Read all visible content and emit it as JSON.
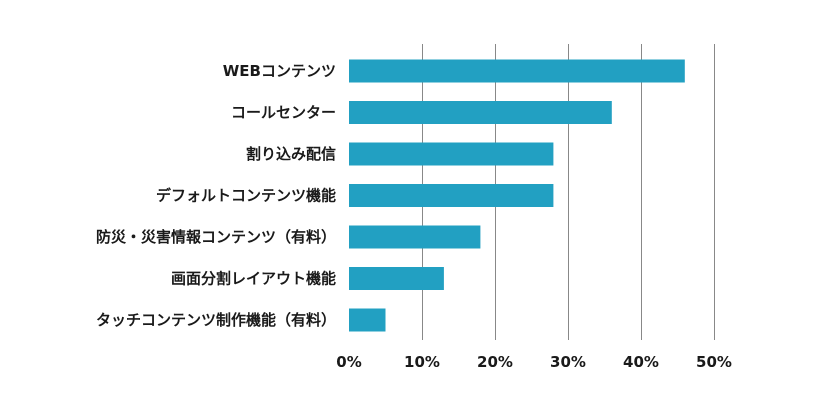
{
  "chart_data": {
    "type": "bar",
    "orientation": "horizontal",
    "categories": [
      "WEBコンテンツ",
      "コールセンター",
      "割り込み配信",
      "デフォルトコンテンツ機能",
      "防災・災害情報コンテンツ（有料）",
      "画面分割レイアウト機能",
      "タッチコンテンツ制作機能（有料）"
    ],
    "values": [
      46,
      36,
      28,
      28,
      18,
      13,
      5
    ],
    "xlim": [
      0,
      50
    ],
    "ticks": [
      "0%",
      "10%",
      "20%",
      "30%",
      "40%",
      "50%"
    ],
    "tick_values": [
      0,
      10,
      20,
      30,
      40,
      50
    ],
    "grid": true,
    "bar_color": "#22a0c2",
    "title": "",
    "xlabel": "",
    "ylabel": ""
  }
}
